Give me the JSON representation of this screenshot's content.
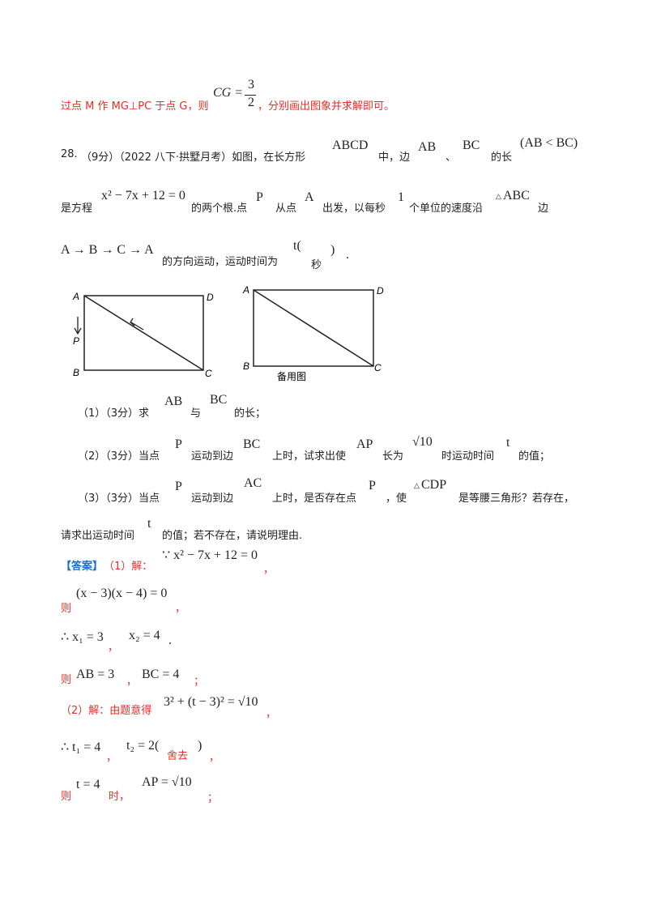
{
  "top_line": {
    "text": "过点 M 作 MG⊥PC 于点 G，则",
    "formula_lhs": "CG =",
    "frac_num": "3",
    "frac_den": "2",
    "tail": "，分别画出图象并求解即可。"
  },
  "problem": {
    "number": "28.",
    "meta": "（9分）（2022 八下·拱墅月考）如图，在长方形",
    "rect_name": "ABCD",
    "t1": "中，边",
    "ab": "AB",
    "sep": "、",
    "bc": "BC",
    "t2": "的长",
    "cond": "(AB < BC)",
    "line2_a": "是方程",
    "equation": "x² − 7x + 12 = 0",
    "line2_b": "的两个根.点",
    "p": "P",
    "line2_c": "从点",
    "a": "A",
    "line2_d": "出发，以每秒",
    "one": "1",
    "line2_e": "个单位的速度沿",
    "tri": "ABC",
    "line2_f": "边",
    "path": "A → B → C → A",
    "line3_a": "的方向运动，运动时间为",
    "t_open": "t(",
    "sec": "秒",
    "t_close": ")",
    "period": "."
  },
  "figures": {
    "fig1": {
      "A": "A",
      "B": "B",
      "C": "C",
      "D": "D",
      "P": "P"
    },
    "fig2": {
      "A": "A",
      "B": "B",
      "C": "C",
      "D": "D",
      "caption": "备用图"
    }
  },
  "questions": {
    "q1": {
      "prefix": "（1）（3分）求",
      "ab": "AB",
      "and": "与",
      "bc": "BC",
      "suffix": "的长；"
    },
    "q2": {
      "prefix": "（2）（3分）当点",
      "p": "P",
      "mid1": "运动到边",
      "bc": "BC",
      "mid2": "上时，试求出使",
      "ap": "AP",
      "mid3": "长为",
      "val": "√10",
      "mid4": "时运动时间",
      "t": "t",
      "suffix": "的值；"
    },
    "q3": {
      "prefix": "（3）（3分）当点",
      "p": "P",
      "mid1": "运动到边",
      "ac": "AC",
      "mid2": "上时，是否存在点",
      "p2": "P",
      "mid3": "，使",
      "tri": "CDP",
      "suffix": "是等腰三角形？若存在，",
      "line2": "请求出运动时间",
      "t": "t",
      "line2_tail": "的值；若不存在，请说明理由."
    }
  },
  "answer": {
    "tag": "【答案】",
    "s1": "（1）解：",
    "eq1": "∵ x² − 7x + 12 = 0",
    "comma1": "，",
    "ze1": "则",
    "eq2": "(x − 3)(x − 4) = 0",
    "comma2": "，",
    "eq3a": "∴ x₁ = 3",
    "comma3": "，",
    "eq3b": "x₂ = 4",
    "period3": ".",
    "ze2": "则",
    "eq4a": "AB = 3",
    "comma4": "，",
    "eq4b": "BC = 4",
    "semi4": "；",
    "s2": "（2）解：由题意得",
    "eq5": "3² + (t − 3)² = √10",
    "comma5": "，",
    "eq6a": "∴ t₁ = 4",
    "comma6": "，",
    "eq6b": "t₂ = 2(",
    "discard": "舍去",
    "eq6c": ")",
    "comma6b": "，",
    "ze3": "则",
    "eq7a": "t = 4",
    "shi": "时，",
    "eq7b": "AP = √10",
    "semi7": "；"
  }
}
